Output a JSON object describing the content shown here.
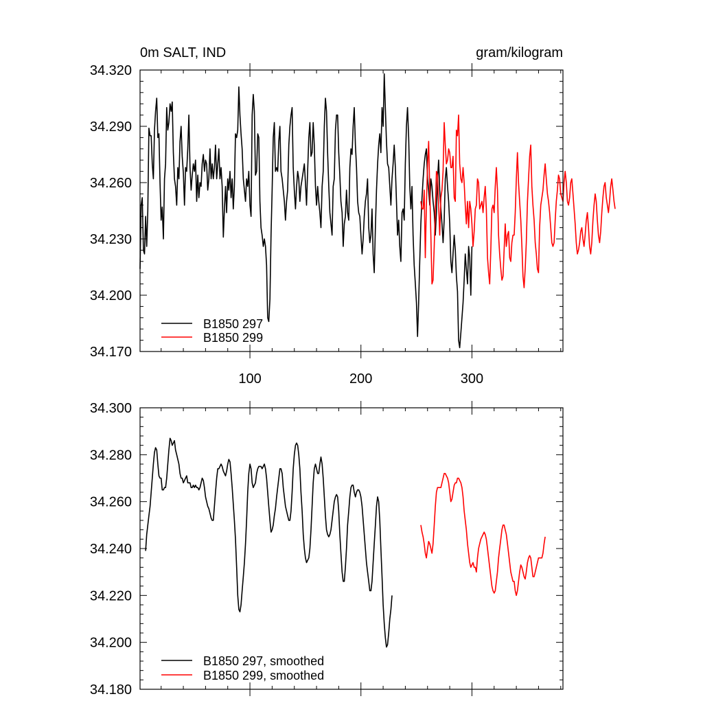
{
  "chart_data": [
    {
      "type": "line",
      "title": "0m SALT, IND",
      "title_right": "gram/kilogram",
      "xlim": [
        1,
        382
      ],
      "ylim": [
        34.17,
        34.32
      ],
      "y_ticks": [
        "34.320",
        "34.290",
        "34.260",
        "34.230",
        "34.200",
        "34.170"
      ],
      "x_ticks": [
        "100",
        "200",
        "300"
      ],
      "legend_position": "bottom-left",
      "series": [
        {
          "name": "B1850 297",
          "color": "#000000",
          "x_start": 1,
          "values": [
            34.214,
            34.248,
            34.252,
            34.224,
            34.222,
            34.242,
            34.226,
            34.245,
            34.289,
            34.285,
            34.285,
            34.27,
            34.262,
            34.288,
            34.298,
            34.305,
            34.284,
            34.286,
            34.26,
            34.24,
            34.247,
            34.23,
            34.262,
            34.27,
            34.3,
            34.288,
            34.292,
            34.302,
            34.298,
            34.303,
            34.276,
            34.262,
            34.258,
            34.248,
            34.268,
            34.262,
            34.282,
            34.29,
            34.274,
            34.265,
            34.248,
            34.268,
            34.266,
            34.278,
            34.296,
            34.268,
            34.256,
            34.264,
            34.27,
            34.266,
            34.272,
            34.25,
            34.264,
            34.252,
            34.26,
            34.258,
            34.27,
            34.275,
            34.266,
            34.272,
            34.27,
            34.256,
            34.262,
            34.278,
            34.262,
            34.27,
            34.262,
            34.268,
            34.28,
            34.262,
            34.27,
            34.278,
            34.262,
            34.268,
            34.258,
            34.231,
            34.246,
            34.258,
            34.244,
            34.262,
            34.256,
            34.266,
            34.252,
            34.262,
            34.246,
            34.258,
            34.286,
            34.284,
            34.288,
            34.311,
            34.296,
            34.286,
            34.278,
            34.262,
            34.256,
            34.25,
            34.262,
            34.258,
            34.266,
            34.248,
            34.242,
            34.296,
            34.307,
            34.298,
            34.264,
            34.266,
            34.286,
            34.284,
            34.25,
            34.236,
            34.232,
            34.226,
            34.23,
            34.226,
            34.216,
            34.188,
            34.186,
            34.198,
            34.232,
            34.256,
            34.284,
            34.292,
            34.266,
            34.268,
            34.266,
            34.282,
            34.29,
            34.266,
            34.262,
            34.256,
            34.25,
            34.24,
            34.25,
            34.256,
            34.28,
            34.29,
            34.296,
            34.3,
            34.268,
            34.256,
            34.246,
            34.258,
            34.266,
            34.262,
            34.25,
            34.258,
            34.262,
            34.266,
            34.27,
            34.26,
            34.248,
            34.266,
            34.284,
            34.292,
            34.274,
            34.276,
            34.292,
            34.28,
            34.258,
            34.248,
            34.258,
            34.25,
            34.244,
            34.236,
            34.258,
            34.266,
            34.29,
            34.305,
            34.298,
            34.276,
            34.258,
            34.244,
            34.238,
            34.232,
            34.258,
            34.262,
            34.288,
            34.296,
            34.296,
            34.276,
            34.264,
            34.25,
            34.244,
            34.226,
            34.238,
            34.242,
            34.256,
            34.244,
            34.24,
            34.268,
            34.278,
            34.275,
            34.29,
            34.3,
            34.28,
            34.268,
            34.25,
            34.244,
            34.242,
            34.232,
            34.222,
            34.23,
            34.242,
            34.25,
            34.254,
            34.262,
            34.236,
            34.228,
            34.232,
            34.246,
            34.222,
            34.212,
            34.236,
            34.256,
            34.27,
            34.28,
            34.286,
            34.276,
            34.3,
            34.29,
            34.318,
            34.3,
            34.282,
            34.27,
            34.268,
            34.258,
            34.248,
            34.262,
            34.27,
            34.28,
            34.268,
            34.25,
            34.232,
            34.24,
            34.226,
            34.218,
            34.244,
            34.246,
            34.24,
            34.27,
            34.29,
            34.3,
            34.284,
            34.258,
            34.246,
            34.258,
            34.232,
            34.216,
            34.206,
            34.196,
            34.178,
            34.196,
            34.218,
            34.238,
            34.252,
            34.262,
            34.27,
            34.275,
            34.278,
            34.262,
            34.256,
            34.248,
            34.262,
            34.258,
            34.25,
            34.244,
            34.232,
            34.244,
            34.262,
            34.272,
            34.256,
            34.246,
            34.238,
            34.228,
            34.24,
            34.262,
            34.268,
            34.258,
            34.25,
            34.238,
            34.218,
            34.212,
            34.222,
            34.232,
            34.224,
            34.21,
            34.202,
            34.176,
            34.172,
            34.18,
            34.188,
            34.196,
            34.208,
            34.222,
            34.214,
            34.206,
            34.226,
            34.22,
            34.2,
            34.226
          ]
        },
        {
          "name": "B1850 299",
          "color": "#ff0000",
          "x_start": 254,
          "values": [
            34.25,
            34.246,
            34.246,
            34.256,
            34.22,
            34.248,
            34.27,
            34.282,
            34.256,
            34.232,
            34.206,
            34.208,
            34.226,
            34.246,
            34.266,
            34.264,
            34.248,
            34.232,
            34.252,
            34.256,
            34.266,
            34.292,
            34.28,
            34.27,
            34.272,
            34.278,
            34.276,
            34.268,
            34.268,
            34.274,
            34.252,
            34.25,
            34.288,
            34.285,
            34.296,
            34.27,
            34.262,
            34.26,
            34.268,
            34.26,
            34.248,
            34.238,
            34.25,
            34.236,
            34.25,
            34.246,
            34.238,
            34.226,
            34.234,
            34.246,
            34.248,
            34.262,
            34.26,
            34.246,
            34.248,
            34.25,
            34.244,
            34.252,
            34.258,
            34.246,
            34.22,
            34.212,
            34.206,
            34.224,
            34.246,
            34.248,
            34.244,
            34.258,
            34.268,
            34.256,
            34.232,
            34.222,
            34.214,
            34.208,
            34.21,
            34.224,
            34.238,
            34.226,
            34.232,
            34.234,
            34.22,
            34.218,
            34.228,
            34.232,
            34.232,
            34.244,
            34.262,
            34.276,
            34.26,
            34.25,
            34.24,
            34.226,
            34.21,
            34.204,
            34.214,
            34.228,
            34.25,
            34.262,
            34.274,
            34.28,
            34.258,
            34.248,
            34.24,
            34.228,
            34.222,
            34.214,
            34.212,
            34.236,
            34.248,
            34.252,
            34.256,
            34.264,
            34.27,
            34.262,
            34.254,
            34.25,
            34.244,
            34.236,
            34.228,
            34.226,
            34.228,
            34.24,
            34.25,
            34.256,
            34.264,
            34.262,
            34.254,
            34.252,
            34.25,
            34.26,
            34.266,
            34.26,
            34.25,
            34.248,
            34.252,
            34.26,
            34.262,
            34.254,
            34.246,
            34.238,
            34.228,
            34.222,
            34.224,
            34.228,
            34.234,
            34.236,
            34.23,
            34.226,
            34.232,
            34.24,
            34.244,
            34.236,
            34.226,
            34.222,
            34.228,
            34.24,
            34.248,
            34.254,
            34.25,
            34.24,
            34.232,
            34.228,
            34.234,
            34.244,
            34.252,
            34.258,
            34.26,
            34.252,
            34.248,
            34.244,
            34.25,
            34.258,
            34.262,
            34.256,
            34.25,
            34.246
          ]
        }
      ]
    },
    {
      "type": "line",
      "xlim": [
        1,
        382
      ],
      "ylim": [
        34.18,
        34.3
      ],
      "y_ticks": [
        "34.300",
        "34.280",
        "34.260",
        "34.240",
        "34.220",
        "34.200",
        "34.180"
      ],
      "legend_position": "bottom-left",
      "series": [
        {
          "name": "B1850 297, smoothed",
          "color": "#000000",
          "x_start": 6,
          "values": [
            34.239,
            34.246,
            34.25,
            34.254,
            34.258,
            34.264,
            34.27,
            34.276,
            34.281,
            34.283,
            34.282,
            34.276,
            34.271,
            34.27,
            34.27,
            34.265,
            34.265,
            34.266,
            34.266,
            34.27,
            34.276,
            34.282,
            34.287,
            34.286,
            34.284,
            34.285,
            34.286,
            34.282,
            34.28,
            34.278,
            34.276,
            34.272,
            34.27,
            34.27,
            34.268,
            34.269,
            34.27,
            34.271,
            34.268,
            34.268,
            34.268,
            34.266,
            34.266,
            34.267,
            34.266,
            34.267,
            34.266,
            34.266,
            34.265,
            34.266,
            34.268,
            34.27,
            34.269,
            34.266,
            34.262,
            34.26,
            34.258,
            34.257,
            34.255,
            34.253,
            34.252,
            34.252,
            34.258,
            34.264,
            34.27,
            34.274,
            34.274,
            34.275,
            34.276,
            34.275,
            34.273,
            34.272,
            34.271,
            34.273,
            34.276,
            34.278,
            34.277,
            34.272,
            34.266,
            34.259,
            34.252,
            34.244,
            34.232,
            34.22,
            34.214,
            34.213,
            34.216,
            34.222,
            34.228,
            34.234,
            34.242,
            34.252,
            34.264,
            34.272,
            34.276,
            34.274,
            34.268,
            34.266,
            34.267,
            34.268,
            34.272,
            34.274,
            34.275,
            34.275,
            34.275,
            34.274,
            34.275,
            34.276,
            34.274,
            34.27,
            34.264,
            34.258,
            34.252,
            34.247,
            34.248,
            34.25,
            34.254,
            34.257,
            34.262,
            34.266,
            34.27,
            34.274,
            34.274,
            34.272,
            34.266,
            34.262,
            34.258,
            34.256,
            34.254,
            34.252,
            34.252,
            34.256,
            34.264,
            34.274,
            34.28,
            34.284,
            34.285,
            34.284,
            34.28,
            34.274,
            34.264,
            34.256,
            34.246,
            34.24,
            34.236,
            34.234,
            34.235,
            34.236,
            34.24,
            34.248,
            34.258,
            34.268,
            34.274,
            34.276,
            34.274,
            34.272,
            34.272,
            34.276,
            34.279,
            34.276,
            34.27,
            34.262,
            34.254,
            34.248,
            34.246,
            34.245,
            34.246,
            34.248,
            34.252,
            34.256,
            34.26,
            34.262,
            34.263,
            34.262,
            34.256,
            34.246,
            34.238,
            34.23,
            34.226,
            34.226,
            34.232,
            34.24,
            34.25,
            34.256,
            34.262,
            34.266,
            34.267,
            34.267,
            34.264,
            34.262,
            34.264,
            34.265,
            34.265,
            34.264,
            34.262,
            34.258,
            34.252,
            34.246,
            34.24,
            34.234,
            34.23,
            34.226,
            34.222,
            34.222,
            34.226,
            34.234,
            34.242,
            34.25,
            34.258,
            34.262,
            34.26,
            34.252,
            34.24,
            34.228,
            34.216,
            34.208,
            34.202,
            34.198,
            34.199,
            34.204,
            34.21,
            34.214,
            34.22
          ]
        },
        {
          "name": "B1850 299, smoothed",
          "color": "#ff0000",
          "x_start": 254,
          "values": [
            34.25,
            34.247,
            34.245,
            34.242,
            34.238,
            34.236,
            34.24,
            34.243,
            34.242,
            34.24,
            34.238,
            34.242,
            34.25,
            34.258,
            34.264,
            34.266,
            34.266,
            34.266,
            34.266,
            34.268,
            34.27,
            34.272,
            34.272,
            34.271,
            34.27,
            34.268,
            34.264,
            34.26,
            34.261,
            34.264,
            34.267,
            34.268,
            34.268,
            34.27,
            34.27,
            34.269,
            34.268,
            34.266,
            34.262,
            34.256,
            34.252,
            34.248,
            34.242,
            34.238,
            34.234,
            34.232,
            34.233,
            34.234,
            34.232,
            34.232,
            34.23,
            34.236,
            34.24,
            34.242,
            34.244,
            34.245,
            34.246,
            34.247,
            34.246,
            34.244,
            34.24,
            34.236,
            34.232,
            34.228,
            34.224,
            34.222,
            34.221,
            34.222,
            34.226,
            34.23,
            34.236,
            34.24,
            34.244,
            34.248,
            34.25,
            34.25,
            34.248,
            34.246,
            34.242,
            34.238,
            34.234,
            34.23,
            34.228,
            34.226,
            34.226,
            34.222,
            34.22,
            34.222,
            34.226,
            34.23,
            34.233,
            34.232,
            34.23,
            34.228,
            34.227,
            34.23,
            34.234,
            34.236,
            34.237,
            34.236,
            34.232,
            34.228,
            34.228,
            34.23,
            34.232,
            34.234,
            34.236,
            34.236,
            34.236,
            34.236,
            34.238,
            34.242,
            34.245
          ]
        }
      ]
    }
  ]
}
